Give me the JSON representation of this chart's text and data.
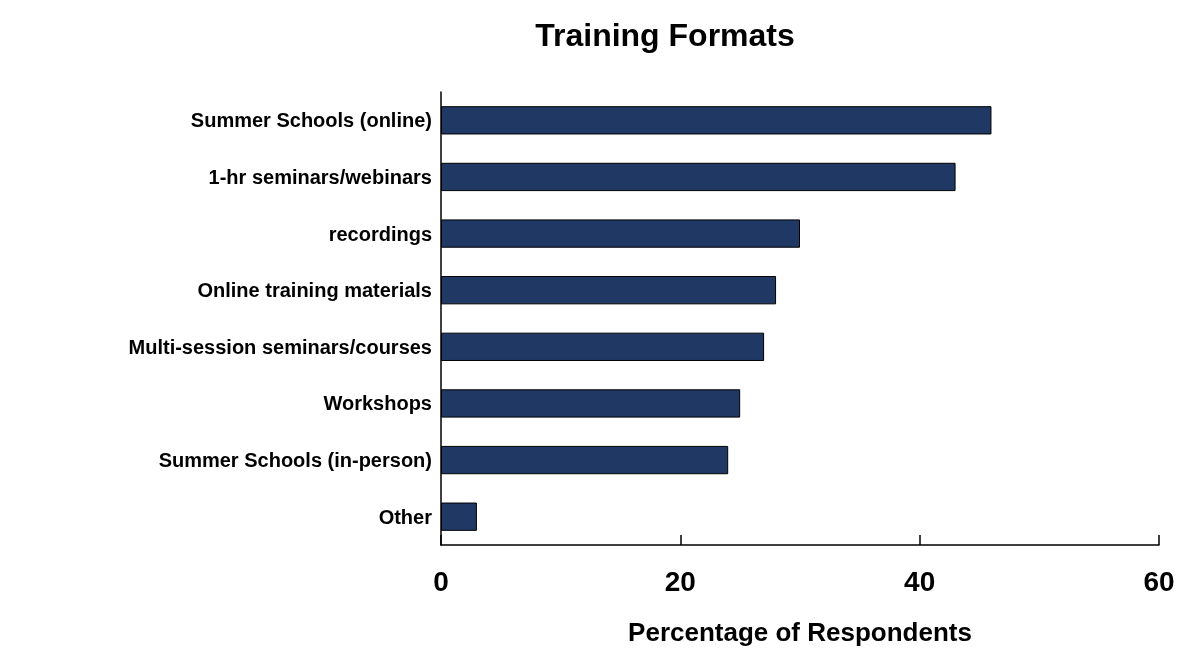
{
  "chart_data": {
    "type": "bar",
    "orientation": "horizontal",
    "title": "Training Formats",
    "xlabel": "Percentage of Respondents",
    "categories": [
      "Summer Schools (online)",
      "1-hr seminars/webinars",
      "recordings",
      "Online training materials",
      "Multi-session seminars/courses",
      "Workshops",
      "Summer Schools (in-person)",
      "Other"
    ],
    "values": [
      46,
      43,
      30,
      28,
      27,
      25,
      24,
      3
    ],
    "color": "#203864",
    "xlim": [
      0,
      60
    ],
    "xticks": [
      0,
      20,
      40,
      60
    ]
  }
}
